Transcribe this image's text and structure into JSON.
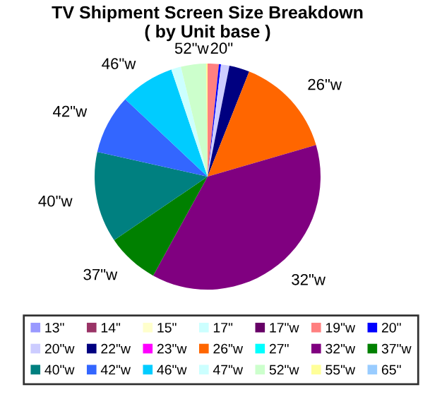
{
  "chart_data": {
    "type": "pie",
    "title": "TV Shipment Screen Size Breakdown\n( by Unit base )",
    "categories": [
      "13\"",
      "14\"",
      "15\"",
      "17\"",
      "17\"w",
      "19\"w",
      "20\"",
      "20\"w",
      "22\"w",
      "23\"w",
      "26\"w",
      "27\"",
      "32\"w",
      "37\"w",
      "40\"w",
      "42\"w",
      "46\"w",
      "47\"w",
      "52\"w",
      "55\"w",
      "65\""
    ],
    "values": [
      0,
      0,
      0,
      0,
      0,
      1.6,
      0.3,
      1.2,
      2.9,
      0,
      14.5,
      0,
      37.5,
      7.5,
      13.0,
      8.5,
      7.8,
      1.4,
      3.6,
      0.2,
      0
    ],
    "colors": [
      "#9999ff",
      "#993366",
      "#ffffcc",
      "#ccffff",
      "#660066",
      "#ff8080",
      "#0000ff",
      "#ccccff",
      "#000080",
      "#ff00ff",
      "#ff6600",
      "#00ffff",
      "#800080",
      "#008000",
      "#008080",
      "#3366ff",
      "#00ccff",
      "#ccffff",
      "#ccffcc",
      "#ffff99",
      "#99ccff"
    ],
    "annotations": [
      {
        "text": "20\"",
        "x": "20\""
      },
      {
        "text": "26\"w",
        "x": "26\"w"
      },
      {
        "text": "32\"w",
        "x": "32\"w"
      },
      {
        "text": "37\"w",
        "x": "37\"w"
      },
      {
        "text": "40\"w",
        "x": "40\"w"
      },
      {
        "text": "42\"w",
        "x": "42\"w"
      },
      {
        "text": "46\"w",
        "x": "46\"w"
      },
      {
        "text": "52\"w",
        "x": "52\"w"
      }
    ],
    "legend": "bottom"
  }
}
